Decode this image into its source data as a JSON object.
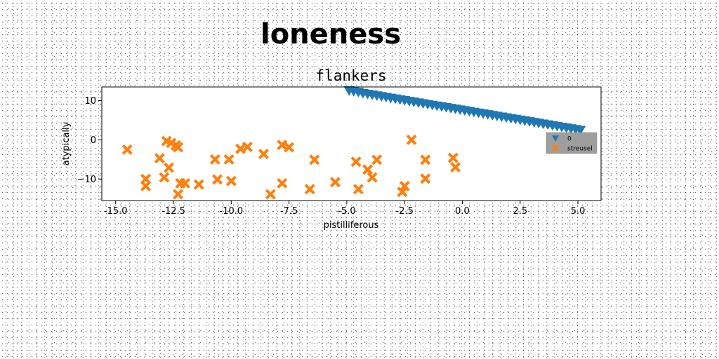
{
  "chart_data": {
    "type": "scatter",
    "suptitle": "loneness",
    "title": "flankers",
    "xlabel": "pistilliferous",
    "ylabel": "atypically",
    "xlim": [
      -15.6,
      6.0
    ],
    "ylim": [
      -15.5,
      13.5
    ],
    "xticks": [
      "-15.0",
      "-12.5",
      "-10.0",
      "-7.5",
      "-5.0",
      "-2.5",
      "0.0",
      "2.5",
      "5.0"
    ],
    "xtick_values": [
      -15.0,
      -12.5,
      -10.0,
      -7.5,
      -5.0,
      -2.5,
      0.0,
      2.5,
      5.0
    ],
    "yticks": [
      "10",
      "0",
      "−10"
    ],
    "ytick_values": [
      10,
      0,
      -10
    ],
    "grid": false,
    "legend_position": "right",
    "series": [
      {
        "name": "0",
        "marker": "triangle-down",
        "color": "#1f77b4",
        "x": [
          -4.9,
          -4.7,
          -4.5,
          -4.3,
          -4.1,
          -3.9,
          -3.7,
          -3.5,
          -3.3,
          -3.1,
          -2.9,
          -2.7,
          -2.5,
          -2.3,
          -2.1,
          -1.9,
          -1.7,
          -1.5,
          -1.3,
          -1.1,
          -0.9,
          -0.7,
          -0.5,
          -0.3,
          -0.1,
          0.1,
          0.3,
          0.5,
          0.7,
          0.9,
          1.1,
          1.3,
          1.5,
          1.7,
          1.9,
          2.1,
          2.3,
          2.5,
          2.7,
          2.9,
          3.1,
          3.3,
          3.5,
          3.7,
          3.9,
          4.1,
          4.3,
          4.5,
          4.7,
          4.9,
          5.1
        ],
        "y": [
          12.6,
          12.4,
          12.2,
          11.9,
          11.7,
          11.5,
          11.3,
          11.1,
          10.9,
          10.7,
          10.5,
          10.3,
          10.1,
          9.9,
          9.7,
          9.5,
          9.3,
          9.1,
          8.9,
          8.7,
          8.5,
          8.3,
          8.1,
          7.9,
          7.7,
          7.5,
          7.3,
          7.1,
          6.9,
          6.7,
          6.5,
          6.3,
          6.1,
          5.9,
          5.7,
          5.5,
          5.3,
          5.1,
          4.9,
          4.7,
          4.5,
          4.3,
          4.1,
          3.9,
          3.7,
          3.5,
          3.3,
          3.1,
          2.9,
          2.7,
          2.5
        ]
      },
      {
        "name": "streusel",
        "marker": "x-filled",
        "color": "#ff7f0e",
        "x": [
          -14.5,
          -13.7,
          -13.7,
          -13.1,
          -12.9,
          -12.8,
          -12.7,
          -12.6,
          -12.4,
          -12.3,
          -12.3,
          -12.2,
          -12.0,
          -11.4,
          -10.7,
          -10.6,
          -10.1,
          -10.0,
          -9.6,
          -9.3,
          -8.6,
          -8.3,
          -7.8,
          -7.8,
          -7.5,
          -6.6,
          -6.4,
          -5.5,
          -4.6,
          -4.5,
          -4.1,
          -3.9,
          -3.7,
          -2.6,
          -2.5,
          -2.2,
          -1.6,
          -1.6,
          -0.4,
          -0.3
        ],
        "y": [
          -2.5,
          -10.0,
          -11.8,
          -4.7,
          -9.6,
          -0.3,
          -7.1,
          -0.8,
          -1.4,
          -13.9,
          -1.9,
          -11.1,
          -11.1,
          -11.4,
          -5.0,
          -10.1,
          -5.0,
          -10.5,
          -2.3,
          -1.8,
          -3.6,
          -13.9,
          -1.3,
          -11.1,
          -1.9,
          -12.6,
          -5.1,
          -10.8,
          -5.6,
          -12.6,
          -7.6,
          -9.6,
          -5.1,
          -13.3,
          -11.8,
          0.0,
          -5.1,
          -9.9,
          -4.6,
          -7.0
        ]
      }
    ]
  }
}
